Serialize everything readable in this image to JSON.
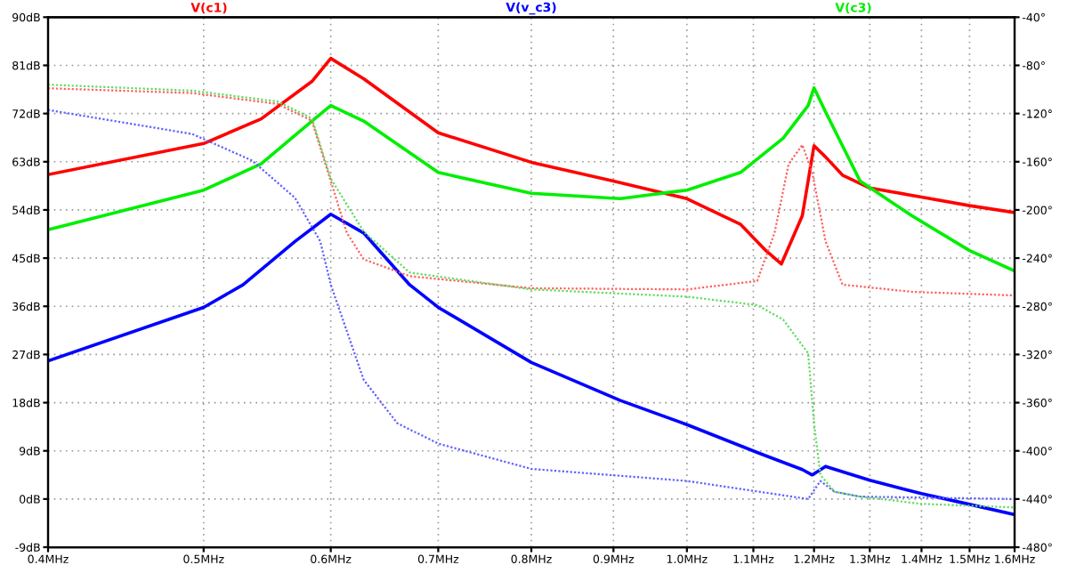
{
  "chart_data": {
    "type": "line",
    "log": "x",
    "grid": true,
    "legend": "top",
    "xlim": [
      0.4,
      1.6
    ],
    "xticks": [
      {
        "value": 0.4,
        "label": "0.4MHz"
      },
      {
        "value": 0.5,
        "label": "0.5MHz"
      },
      {
        "value": 0.6,
        "label": "0.6MHz"
      },
      {
        "value": 0.7,
        "label": "0.7MHz"
      },
      {
        "value": 0.8,
        "label": "0.8MHz"
      },
      {
        "value": 0.9,
        "label": "0.9MHz"
      },
      {
        "value": 1.0,
        "label": "1.0MHz"
      },
      {
        "value": 1.1,
        "label": "1.1MHz"
      },
      {
        "value": 1.2,
        "label": "1.2MHz"
      },
      {
        "value": 1.3,
        "label": "1.3MHz"
      },
      {
        "value": 1.4,
        "label": "1.4MHz"
      },
      {
        "value": 1.5,
        "label": "1.5MHz"
      },
      {
        "value": 1.6,
        "label": "1.6MHz"
      }
    ],
    "ylim": [
      -9,
      90
    ],
    "yticks": [
      {
        "value": 90,
        "label": "90dB"
      },
      {
        "value": 81,
        "label": "81dB"
      },
      {
        "value": 72,
        "label": "72dB"
      },
      {
        "value": 63,
        "label": "63dB"
      },
      {
        "value": 54,
        "label": "54dB"
      },
      {
        "value": 45,
        "label": "45dB"
      },
      {
        "value": 36,
        "label": "36dB"
      },
      {
        "value": 27,
        "label": "27dB"
      },
      {
        "value": 18,
        "label": "18dB"
      },
      {
        "value": 9,
        "label": "9dB"
      },
      {
        "value": 0,
        "label": "0dB"
      },
      {
        "value": -9,
        "label": "-9dB"
      }
    ],
    "y2lim": [
      -480,
      -40
    ],
    "y2ticks": [
      {
        "value": -40,
        "label": "-40°"
      },
      {
        "value": -80,
        "label": "-80°"
      },
      {
        "value": -120,
        "label": "-120°"
      },
      {
        "value": -160,
        "label": "-160°"
      },
      {
        "value": -200,
        "label": "-200°"
      },
      {
        "value": -240,
        "label": "-240°"
      },
      {
        "value": -280,
        "label": "-280°"
      },
      {
        "value": -320,
        "label": "-320°"
      },
      {
        "value": -360,
        "label": "-360°"
      },
      {
        "value": -400,
        "label": "-400°"
      },
      {
        "value": -440,
        "label": "-440°"
      },
      {
        "value": -480,
        "label": "-480°"
      }
    ],
    "series": [
      {
        "name": "V(c1)",
        "color": "#ff0000",
        "x": [
          0.4,
          0.5,
          0.543,
          0.584,
          0.6,
          0.629,
          0.7,
          0.8,
          0.9,
          1.0,
          1.08,
          1.12,
          1.145,
          1.18,
          1.2,
          1.22,
          1.25,
          1.3,
          1.4,
          1.5,
          1.6
        ],
        "values": [
          60.6,
          66.4,
          71,
          78,
          82.3,
          78.5,
          68.4,
          62.9,
          59.4,
          56.1,
          51.3,
          46.4,
          43.9,
          52.9,
          66,
          63.9,
          60.5,
          58.1,
          56.4,
          54.8,
          53.5
        ]
      },
      {
        "name": "V(v_c3)",
        "color": "#0000ff",
        "x": [
          0.4,
          0.5,
          0.529,
          0.57,
          0.6,
          0.629,
          0.672,
          0.7,
          0.8,
          0.909,
          1.0,
          1.106,
          1.18,
          1.197,
          1.22,
          1.3,
          1.4,
          1.5,
          1.6
        ],
        "values": [
          25.8,
          35.8,
          40,
          48.1,
          53.2,
          49.7,
          40,
          35.8,
          25.5,
          18.4,
          13.9,
          8.7,
          5.5,
          4.5,
          6.1,
          3.5,
          1.0,
          -1.0,
          -2.9
        ]
      },
      {
        "name": "V(c3)",
        "color": "#00ee00",
        "x": [
          0.4,
          0.5,
          0.543,
          0.584,
          0.6,
          0.629,
          0.7,
          0.8,
          0.909,
          1.0,
          1.08,
          1.148,
          1.19,
          1.2,
          1.22,
          1.282,
          1.381,
          1.5,
          1.6
        ],
        "values": [
          50.3,
          57.7,
          62.6,
          70.6,
          73.5,
          70.6,
          61,
          57.1,
          56.1,
          57.7,
          61,
          67.4,
          73.5,
          76.8,
          72.3,
          59.4,
          52.9,
          46.4,
          42.6
        ]
      },
      {
        "axis": "y2",
        "color": "#ff6060",
        "line_style": "dotted",
        "x": [
          0.4,
          0.492,
          0.556,
          0.584,
          0.6,
          0.614,
          0.629,
          0.672,
          0.8,
          1.0,
          1.106,
          1.134,
          1.157,
          1.18,
          1.197,
          1.22,
          1.25,
          1.381,
          1.6
        ],
        "values": [
          -99,
          -103,
          -112,
          -126,
          -176,
          -219,
          -241,
          -255,
          -265,
          -266,
          -259,
          -219,
          -162,
          -146,
          -169,
          -226,
          -262,
          -268,
          -271
        ]
      },
      {
        "axis": "y2",
        "color": "#6060ff",
        "line_style": "dotted",
        "x": [
          0.4,
          0.492,
          0.536,
          0.57,
          0.591,
          0.6,
          0.629,
          0.66,
          0.7,
          0.8,
          1.0,
          1.19,
          1.211,
          1.236,
          1.282,
          1.6
        ],
        "values": [
          -117,
          -137,
          -159,
          -190,
          -226,
          -262,
          -341,
          -377,
          -394,
          -415,
          -425,
          -440,
          -425,
          -434,
          -438,
          -440
        ]
      },
      {
        "axis": "y2",
        "color": "#60dd60",
        "line_style": "dotted",
        "x": [
          0.4,
          0.492,
          0.556,
          0.584,
          0.6,
          0.629,
          0.672,
          0.8,
          1.0,
          1.106,
          1.148,
          1.19,
          1.2,
          1.211,
          1.236,
          1.282,
          1.4,
          1.6
        ],
        "values": [
          -96,
          -101,
          -110,
          -124,
          -174,
          -218,
          -252,
          -266,
          -272,
          -279,
          -291,
          -319,
          -377,
          -420,
          -434,
          -438,
          -444,
          -447
        ]
      }
    ]
  }
}
